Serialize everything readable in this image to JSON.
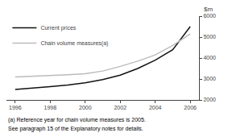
{
  "chart_data": {
    "type": "line",
    "ylabel": "$m",
    "annotations": [
      "(a) Reference year for chain volume measures is 2005.",
      "See paragraph 15 of the Explanatory notes for details."
    ],
    "x": [
      1996,
      1997,
      1998,
      1999,
      2000,
      2001,
      2002,
      2003,
      2004,
      2005,
      2006
    ],
    "series": [
      {
        "name": "Current prices",
        "color": "#111111",
        "values": [
          2500,
          2560,
          2630,
          2710,
          2820,
          2970,
          3180,
          3500,
          3900,
          4400,
          5500
        ]
      },
      {
        "name": "Chain volume measures(a)",
        "color": "#bbbbbb",
        "values": [
          3100,
          3130,
          3170,
          3200,
          3250,
          3380,
          3600,
          3850,
          4150,
          4600,
          5150
        ]
      }
    ],
    "xlim": [
      1995.5,
      2006.5
    ],
    "ylim": [
      2000,
      6000
    ],
    "xticks": [
      1996,
      1998,
      2000,
      2002,
      2004,
      2006
    ],
    "yticks": [
      2000,
      3000,
      4000,
      5000,
      6000
    ],
    "grid": false,
    "legend": "upper left"
  }
}
